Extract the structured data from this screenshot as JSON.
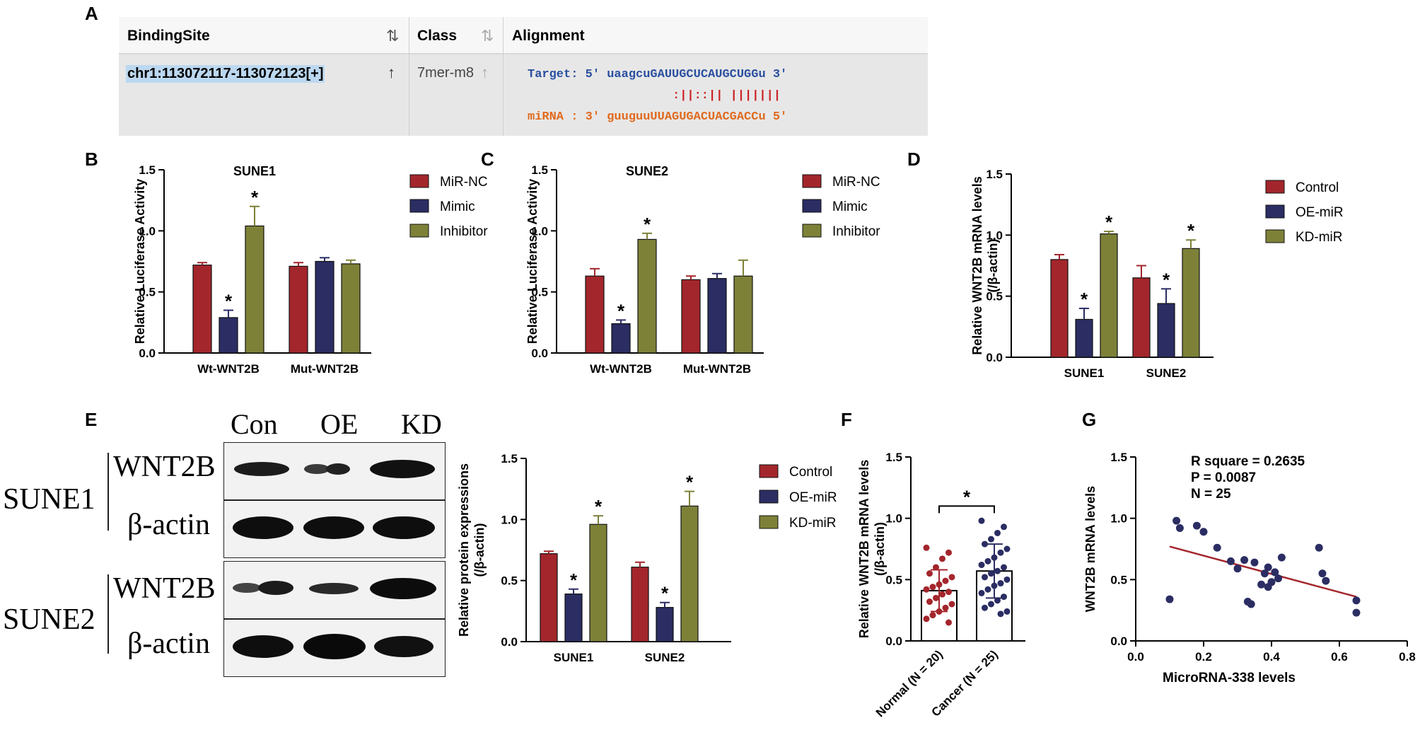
{
  "panel_labels": {
    "a": "A",
    "b": "B",
    "c": "C",
    "d": "D",
    "e": "E",
    "f": "F",
    "g": "G"
  },
  "panelA": {
    "headers": [
      "BindingSite",
      "Class",
      "Alignment"
    ],
    "binding_site": "chr1:113072117-113072123[+]",
    "class_value": "7mer-m8",
    "target_line": "Target: 5' uaagcuGAUUGCUCAUGCUGGu 3'",
    "match_line": ":||::|| |||||||",
    "mirna_line": "miRNA : 3' guuguuUUAGUGACUACGACCu 5'",
    "colors": {
      "target": "#2a4fa0",
      "mirna": "#e06a1e",
      "match": "#cc2222",
      "highlight": "#bcd8f0"
    },
    "sort_icons": [
      "sort-updown-icon",
      "sort-up-icon"
    ]
  },
  "panelE_blot": {
    "columns": [
      "Con",
      "OE",
      "KD"
    ],
    "groups": [
      {
        "name": "SUNE1",
        "rows": [
          "WNT2B",
          "β-actin"
        ]
      },
      {
        "name": "SUNE2",
        "rows": [
          "WNT2B",
          "β-actin"
        ]
      }
    ]
  },
  "chart_data": [
    {
      "id": "B",
      "type": "bar",
      "title": "SUNE1",
      "ylabel": "Relative Luciferase Activity",
      "xlabel": "",
      "ylim": [
        0,
        1.5
      ],
      "yticks": [
        "0.0",
        "0.5",
        "1.0",
        "1.5"
      ],
      "categories": [
        "Wt-WNT2B",
        "Mut-WNT2B"
      ],
      "series": [
        {
          "name": "MiR-NC",
          "color": "#a3262c",
          "values": [
            0.72,
            0.71
          ],
          "errors": [
            0.02,
            0.03
          ]
        },
        {
          "name": "Mimic",
          "color": "#2b2d63",
          "values": [
            0.29,
            0.75
          ],
          "errors": [
            0.06,
            0.03
          ]
        },
        {
          "name": "Inhibitor",
          "color": "#7d8138",
          "values": [
            1.04,
            0.73
          ],
          "errors": [
            0.16,
            0.03
          ]
        }
      ],
      "significance": [
        [
          "",
          "*",
          "*"
        ],
        [
          "",
          "",
          ""
        ]
      ],
      "legend": "right"
    },
    {
      "id": "C",
      "type": "bar",
      "title": "SUNE2",
      "ylabel": "Relative Luciferase Activity",
      "xlabel": "",
      "ylim": [
        0,
        1.5
      ],
      "yticks": [
        "0.0",
        "0.5",
        "1.0",
        "1.5"
      ],
      "categories": [
        "Wt-WNT2B",
        "Mut-WNT2B"
      ],
      "series": [
        {
          "name": "MiR-NC",
          "color": "#a3262c",
          "values": [
            0.63,
            0.6
          ],
          "errors": [
            0.06,
            0.03
          ]
        },
        {
          "name": "Mimic",
          "color": "#2b2d63",
          "values": [
            0.24,
            0.61
          ],
          "errors": [
            0.03,
            0.04
          ]
        },
        {
          "name": "Inhibitor",
          "color": "#7d8138",
          "values": [
            0.93,
            0.63
          ],
          "errors": [
            0.05,
            0.13
          ]
        }
      ],
      "significance": [
        [
          "",
          "*",
          "*"
        ],
        [
          "",
          "",
          ""
        ]
      ],
      "legend": "right"
    },
    {
      "id": "D",
      "type": "bar",
      "title": "",
      "ylabel": "Relative WNT2B mRNA levels",
      "ylabel2": "(/β-actin)",
      "xlabel": "",
      "ylim": [
        0,
        1.5
      ],
      "yticks": [
        "0.0",
        "0.5",
        "1.0",
        "1.5"
      ],
      "categories": [
        "SUNE1",
        "SUNE2"
      ],
      "series": [
        {
          "name": "Control",
          "color": "#a3262c",
          "values": [
            0.8,
            0.65
          ],
          "errors": [
            0.04,
            0.1
          ]
        },
        {
          "name": "OE-miR",
          "color": "#2b2d63",
          "values": [
            0.31,
            0.44
          ],
          "errors": [
            0.09,
            0.12
          ]
        },
        {
          "name": "KD-miR",
          "color": "#7d8138",
          "values": [
            1.01,
            0.89
          ],
          "errors": [
            0.02,
            0.07
          ]
        }
      ],
      "significance": [
        [
          "",
          "*",
          "*"
        ],
        [
          "",
          "*",
          "*"
        ]
      ],
      "legend": "right"
    },
    {
      "id": "E",
      "type": "bar",
      "title": "",
      "ylabel": "Relative protein expressions",
      "ylabel2": "(/β-actin)",
      "xlabel": "",
      "ylim": [
        0,
        1.5
      ],
      "yticks": [
        "0.0",
        "0.5",
        "1.0",
        "1.5"
      ],
      "categories": [
        "SUNE1",
        "SUNE2"
      ],
      "series": [
        {
          "name": "Control",
          "color": "#a3262c",
          "values": [
            0.72,
            0.61
          ],
          "errors": [
            0.02,
            0.04
          ]
        },
        {
          "name": "OE-miR",
          "color": "#2b2d63",
          "values": [
            0.39,
            0.28
          ],
          "errors": [
            0.04,
            0.04
          ]
        },
        {
          "name": "KD-miR",
          "color": "#7d8138",
          "values": [
            0.96,
            1.11
          ],
          "errors": [
            0.07,
            0.12
          ]
        }
      ],
      "significance": [
        [
          "",
          "*",
          "*"
        ],
        [
          "",
          "*",
          "*"
        ]
      ],
      "legend": "right"
    },
    {
      "id": "F",
      "type": "bar",
      "title": "",
      "ylabel": "Relative WNT2B mRNA levels",
      "ylabel2": "(/β-actin)",
      "xlabel": "",
      "ylim": [
        0,
        1.5
      ],
      "yticks": [
        "0.0",
        "0.5",
        "1.0",
        "1.5"
      ],
      "categories": [
        "Normal (N = 20)",
        "Cancer (N = 25)"
      ],
      "means": [
        0.41,
        0.57
      ],
      "sd": [
        0.17,
        0.22
      ],
      "point_colors": [
        "#a3262c",
        "#2b2d63"
      ],
      "points": [
        [
          0.76,
          0.72,
          0.67,
          0.6,
          0.55,
          0.52,
          0.49,
          0.46,
          0.44,
          0.42,
          0.4,
          0.38,
          0.35,
          0.32,
          0.3,
          0.27,
          0.24,
          0.21,
          0.18,
          0.15
        ],
        [
          0.98,
          0.93,
          0.88,
          0.83,
          0.79,
          0.75,
          0.72,
          0.68,
          0.65,
          0.62,
          0.6,
          0.57,
          0.55,
          0.52,
          0.5,
          0.47,
          0.45,
          0.42,
          0.39,
          0.36,
          0.33,
          0.3,
          0.27,
          0.24,
          0.22
        ]
      ],
      "significance": "*"
    },
    {
      "id": "G",
      "type": "scatter",
      "title": "",
      "xlabel": "MicroRNA-338 levels",
      "ylabel": "WNT2B mRNA levels",
      "xlim": [
        0,
        0.8
      ],
      "ylim": [
        0,
        1.5
      ],
      "xticks": [
        "0.0",
        "0.2",
        "0.4",
        "0.6",
        "0.8"
      ],
      "yticks": [
        "0.0",
        "0.5",
        "1.0",
        "1.5"
      ],
      "annotations": [
        "R square = 0.2635",
        "P = 0.0087",
        "N = 25"
      ],
      "point_color": "#2b2d63",
      "line_color": "#a3262c",
      "fit_line": [
        [
          0.1,
          0.77
        ],
        [
          0.65,
          0.36
        ]
      ],
      "points": [
        [
          0.12,
          0.98
        ],
        [
          0.13,
          0.92
        ],
        [
          0.18,
          0.94
        ],
        [
          0.2,
          0.89
        ],
        [
          0.24,
          0.76
        ],
        [
          0.28,
          0.65
        ],
        [
          0.32,
          0.66
        ],
        [
          0.35,
          0.64
        ],
        [
          0.38,
          0.55
        ],
        [
          0.39,
          0.6
        ],
        [
          0.4,
          0.48
        ],
        [
          0.41,
          0.56
        ],
        [
          0.42,
          0.51
        ],
        [
          0.43,
          0.68
        ],
        [
          0.37,
          0.46
        ],
        [
          0.39,
          0.44
        ],
        [
          0.3,
          0.59
        ],
        [
          0.33,
          0.32
        ],
        [
          0.34,
          0.3
        ],
        [
          0.1,
          0.34
        ],
        [
          0.54,
          0.76
        ],
        [
          0.55,
          0.55
        ],
        [
          0.56,
          0.49
        ],
        [
          0.65,
          0.33
        ],
        [
          0.65,
          0.23
        ]
      ]
    }
  ]
}
